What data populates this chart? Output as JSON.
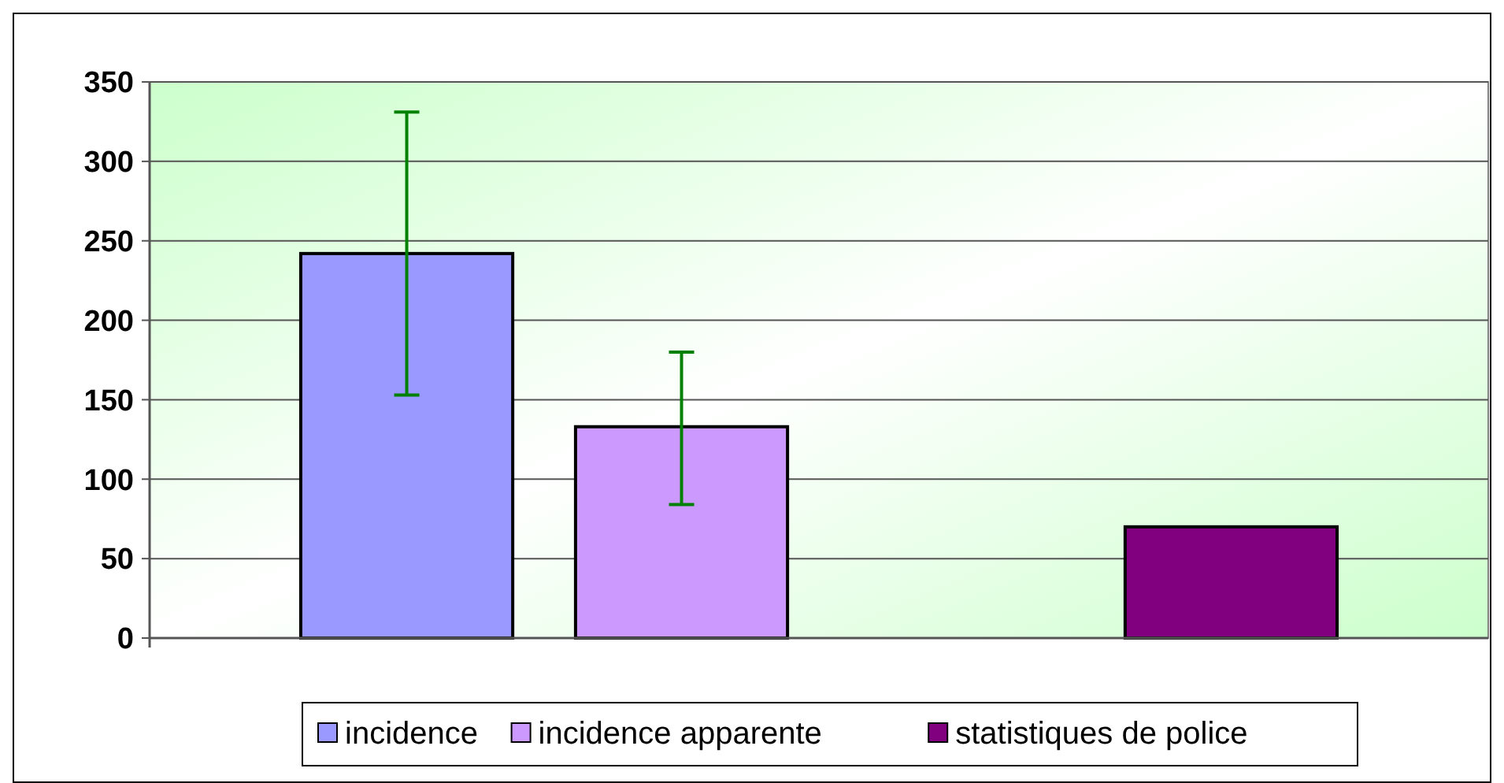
{
  "chart_data": {
    "type": "bar",
    "categories": [
      null
    ],
    "series": [
      {
        "name": "incidence",
        "color": "#9999ff",
        "values": [
          242
        ],
        "errors": [
          [
            153,
            331
          ]
        ]
      },
      {
        "name": "incidence apparente",
        "color": "#cc99ff",
        "values": [
          133
        ],
        "errors": [
          [
            84,
            180
          ]
        ]
      },
      {
        "values": [
          null
        ]
      },
      {
        "name": "statistiques de police",
        "color": "#800080",
        "values": [
          70
        ]
      }
    ],
    "ylim": [
      0,
      350
    ],
    "yticks": [
      0,
      50,
      100,
      150,
      200,
      250,
      300,
      350
    ],
    "grid": "y",
    "legend": "bottom"
  }
}
